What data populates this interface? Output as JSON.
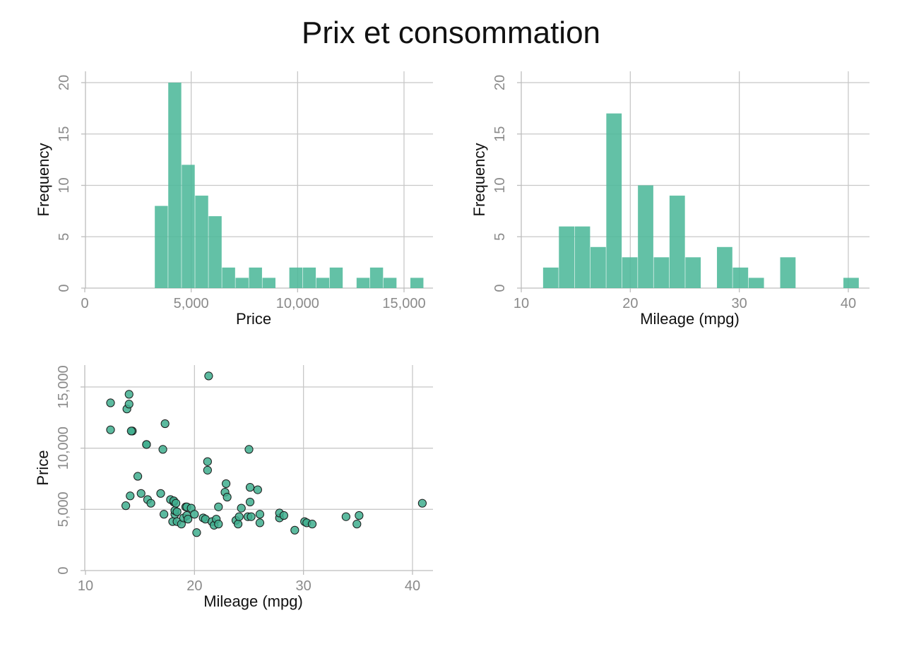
{
  "figure": {
    "title": "Prix et consommation"
  },
  "colors": {
    "bar": "#4db89a",
    "point": "#3fae8e",
    "grid": "#c8c8c8",
    "axis": "#bdbdbd"
  },
  "chart_data": [
    {
      "type": "bar",
      "subtype": "histogram",
      "xlabel": "Price",
      "ylabel": "Frequency",
      "xlim": [
        0,
        16000
      ],
      "ylim": [
        0,
        20
      ],
      "xticks": [
        0,
        5000,
        10000,
        15000
      ],
      "xtick_labels": [
        "0",
        "5,000",
        "10,000",
        "15,000"
      ],
      "yticks": [
        0,
        5,
        10,
        15,
        20
      ],
      "ytick_labels": [
        "0",
        "5",
        "10",
        "15",
        "20"
      ],
      "bin_edges": [
        3291,
        3923,
        4555,
        5187,
        5819,
        6451,
        7083,
        7715,
        8347,
        8979,
        9611,
        10243,
        10875,
        11507,
        12139,
        12771,
        13403,
        14035,
        14667,
        15299,
        15931
      ],
      "counts": [
        8,
        20,
        12,
        9,
        7,
        2,
        1,
        2,
        1,
        0,
        2,
        2,
        1,
        2,
        0,
        1,
        2,
        1,
        0,
        1
      ],
      "grid": true
    },
    {
      "type": "bar",
      "subtype": "histogram",
      "xlabel": "Mileage (mpg)",
      "ylabel": "Frequency",
      "xlim": [
        10,
        41
      ],
      "ylim": [
        0,
        20
      ],
      "xticks": [
        10,
        20,
        30,
        40
      ],
      "xtick_labels": [
        "10",
        "20",
        "30",
        "40"
      ],
      "yticks": [
        0,
        5,
        10,
        15,
        20
      ],
      "ytick_labels": [
        "0",
        "5",
        "10",
        "15",
        "20"
      ],
      "bin_edges": [
        12,
        13.45,
        14.9,
        16.35,
        17.8,
        19.25,
        20.7,
        22.15,
        23.6,
        25.05,
        26.5,
        27.95,
        29.4,
        30.85,
        32.3,
        33.75,
        35.2,
        36.65,
        38.1,
        39.55,
        41
      ],
      "counts": [
        2,
        6,
        6,
        4,
        17,
        3,
        10,
        3,
        9,
        3,
        0,
        4,
        2,
        1,
        0,
        3,
        0,
        0,
        0,
        1
      ],
      "grid": true
    },
    {
      "type": "scatter",
      "xlabel": "Mileage (mpg)",
      "ylabel": "Price",
      "xlim": [
        10,
        41
      ],
      "ylim": [
        0,
        16000
      ],
      "xticks": [
        10,
        20,
        30,
        40
      ],
      "xtick_labels": [
        "10",
        "20",
        "30",
        "40"
      ],
      "yticks": [
        0,
        5000,
        10000,
        15000
      ],
      "ytick_labels": [
        "0",
        "5,000",
        "10,000",
        "15,000"
      ],
      "grid": true,
      "x": [
        12.3,
        12.3,
        13.7,
        13.8,
        14.0,
        14.0,
        14.1,
        14.3,
        14.2,
        14.8,
        15.1,
        15.6,
        15.6,
        15.7,
        16.0,
        16.9,
        17.2,
        17.1,
        17.3,
        17.8,
        18.0,
        18.1,
        18.1,
        18.2,
        18.2,
        18.4,
        18.4,
        18.3,
        18.8,
        19.0,
        19.2,
        19.3,
        19.4,
        19.3,
        19.7,
        20.0,
        20.2,
        20.8,
        21.0,
        21.2,
        21.2,
        21.3,
        21.6,
        21.8,
        22.0,
        22.2,
        22.2,
        22.8,
        22.9,
        23.0,
        23.8,
        24.0,
        24.1,
        24.3,
        24.9,
        25.0,
        25.1,
        25.1,
        25.2,
        25.8,
        26.0,
        26.0,
        27.8,
        27.8,
        28.2,
        29.2,
        30.1,
        30.3,
        30.8,
        33.9,
        34.9,
        35.1,
        40.9
      ],
      "y": [
        13700,
        11500,
        5300,
        13200,
        14400,
        13600,
        6100,
        11400,
        11400,
        7700,
        6300,
        10300,
        10300,
        5800,
        5500,
        6300,
        4600,
        9900,
        12000,
        5800,
        4000,
        5600,
        5700,
        4600,
        4900,
        4800,
        4000,
        5500,
        3800,
        4300,
        5200,
        4500,
        4200,
        5200,
        5100,
        4600,
        3100,
        4300,
        4200,
        8900,
        8200,
        15900,
        4000,
        3700,
        4200,
        5200,
        3800,
        6400,
        7100,
        6000,
        4100,
        3800,
        4400,
        5100,
        4400,
        9900,
        5600,
        6800,
        4400,
        6600,
        3900,
        4600,
        4300,
        4700,
        4500,
        3300,
        4000,
        3900,
        3800,
        4400,
        3800,
        4500,
        5500
      ]
    }
  ]
}
